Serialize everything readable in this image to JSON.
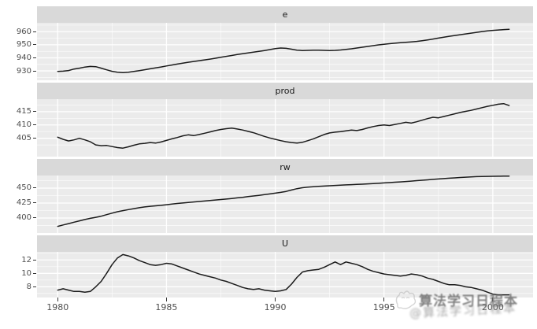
{
  "chart_data": {
    "type": "line",
    "title": "",
    "description": "Faceted quarterly time series panels, ggplot2 style",
    "facet_variable_labels": [
      "e",
      "prod",
      "rw",
      "U"
    ],
    "legend": "none",
    "grid": "major+minor",
    "x": {
      "start_year": 1980,
      "frequency": "quarterly",
      "step": 0.25,
      "n_points": 84,
      "xlim": [
        1979.05,
        2001.85
      ],
      "major_ticks": [
        1980,
        1985,
        1990,
        1995,
        2000
      ],
      "minor_ticks": [
        1982.5,
        1987.5,
        1992.5,
        1997.5
      ],
      "tick_labels": [
        "1980",
        "1985",
        "1990",
        "1995",
        "2000"
      ]
    },
    "facets": [
      {
        "label": "e",
        "ylim": [
          922.8,
          966.8
        ],
        "major_ticks": [
          930,
          940,
          950,
          960
        ],
        "minor_ticks": [
          925,
          935,
          945,
          955,
          965
        ],
        "tick_labels": [
          "930",
          "940",
          "950",
          "960"
        ],
        "values": [
          929.6,
          929.8,
          930.3,
          931.4,
          932.1,
          932.9,
          933.4,
          933.2,
          932.1,
          930.8,
          929.7,
          929.0,
          928.7,
          929.0,
          929.6,
          930.2,
          930.9,
          931.6,
          932.3,
          933.0,
          933.8,
          934.5,
          935.2,
          935.9,
          936.6,
          937.2,
          937.8,
          938.4,
          939.0,
          939.7,
          940.4,
          941.1,
          941.8,
          942.5,
          943.1,
          943.7,
          944.3,
          944.9,
          945.6,
          946.3,
          947.0,
          947.5,
          947.3,
          946.6,
          945.9,
          945.6,
          945.7,
          945.9,
          945.9,
          945.7,
          945.6,
          945.7,
          946.0,
          946.4,
          946.9,
          947.5,
          948.1,
          948.7,
          949.3,
          949.9,
          950.4,
          950.8,
          951.2,
          951.6,
          951.9,
          952.2,
          952.6,
          953.1,
          953.7,
          954.4,
          955.1,
          955.8,
          956.5,
          957.1,
          957.7,
          958.3,
          958.9,
          959.5,
          960.1,
          960.6,
          961.0,
          961.3,
          961.6,
          961.8
        ]
      },
      {
        "label": "prod",
        "ylim": [
          398.1,
          419.7
        ],
        "major_ticks": [
          405,
          410,
          415
        ],
        "minor_ticks": [
          402.5,
          407.5,
          412.5,
          417.5
        ],
        "tick_labels": [
          "405",
          "410",
          "415"
        ],
        "values": [
          405.4,
          404.6,
          404.0,
          404.4,
          405.0,
          404.4,
          403.7,
          402.5,
          402.2,
          402.3,
          401.9,
          401.5,
          401.3,
          401.8,
          402.4,
          402.9,
          403.1,
          403.4,
          403.2,
          403.6,
          404.2,
          404.8,
          405.3,
          405.9,
          406.3,
          406.0,
          406.4,
          406.9,
          407.4,
          407.9,
          408.3,
          408.6,
          408.8,
          408.5,
          408.1,
          407.6,
          407.1,
          406.4,
          405.7,
          405.1,
          404.6,
          404.1,
          403.7,
          403.4,
          403.2,
          403.5,
          404.1,
          404.8,
          405.6,
          406.4,
          407.0,
          407.3,
          407.5,
          407.8,
          408.1,
          407.9,
          408.3,
          408.9,
          409.4,
          409.8,
          410.0,
          409.8,
          410.2,
          410.6,
          411.0,
          410.7,
          411.2,
          411.8,
          412.4,
          412.9,
          412.7,
          413.2,
          413.7,
          414.2,
          414.7,
          415.1,
          415.5,
          416.0,
          416.5,
          417.0,
          417.4,
          417.8,
          418.0,
          417.3
        ]
      },
      {
        "label": "rw",
        "ylim": [
          375,
          471
        ],
        "major_ticks": [
          400,
          425,
          450
        ],
        "minor_ticks": [
          387.5,
          412.5,
          437.5,
          462.5
        ],
        "tick_labels": [
          "400",
          "425",
          "450"
        ],
        "values": [
          386.1,
          388.4,
          390.7,
          393.0,
          395.2,
          397.5,
          399.4,
          401.2,
          403.0,
          405.6,
          408.2,
          410.5,
          412.4,
          414.1,
          415.7,
          417.2,
          418.5,
          419.6,
          420.4,
          421.2,
          422.2,
          423.3,
          424.3,
          425.1,
          425.9,
          426.8,
          427.6,
          428.4,
          429.2,
          430.1,
          430.9,
          431.7,
          432.6,
          433.6,
          434.6,
          435.7,
          436.8,
          437.9,
          439.0,
          440.2,
          441.5,
          442.9,
          444.5,
          446.8,
          449.1,
          450.6,
          451.6,
          452.3,
          452.9,
          453.4,
          453.9,
          454.4,
          454.9,
          455.3,
          455.7,
          456.1,
          456.5,
          457.0,
          457.5,
          458.0,
          458.6,
          459.2,
          459.8,
          460.4,
          461.0,
          461.7,
          462.4,
          463.1,
          463.8,
          464.5,
          465.2,
          465.9,
          466.5,
          467.1,
          467.7,
          468.2,
          468.7,
          469.1,
          469.4,
          469.6,
          469.7,
          469.8,
          469.9,
          470.0
        ]
      },
      {
        "label": "U",
        "ylim": [
          6.4,
          13.2
        ],
        "major_ticks": [
          8,
          10,
          12
        ],
        "minor_ticks": [
          7,
          9,
          11,
          13
        ],
        "tick_labels": [
          "8",
          "10",
          "12"
        ],
        "values": [
          7.5,
          7.7,
          7.5,
          7.3,
          7.3,
          7.2,
          7.3,
          8.0,
          8.8,
          10.0,
          11.3,
          12.3,
          12.8,
          12.6,
          12.3,
          11.9,
          11.6,
          11.3,
          11.2,
          11.3,
          11.5,
          11.4,
          11.1,
          10.8,
          10.5,
          10.2,
          9.9,
          9.7,
          9.5,
          9.3,
          9.0,
          8.8,
          8.5,
          8.2,
          7.9,
          7.7,
          7.6,
          7.7,
          7.5,
          7.4,
          7.3,
          7.4,
          7.6,
          8.4,
          9.4,
          10.2,
          10.4,
          10.5,
          10.6,
          10.9,
          11.3,
          11.7,
          11.3,
          11.7,
          11.5,
          11.3,
          11.0,
          10.6,
          10.3,
          10.1,
          9.9,
          9.8,
          9.7,
          9.6,
          9.7,
          9.9,
          9.8,
          9.6,
          9.3,
          9.1,
          8.8,
          8.5,
          8.3,
          8.3,
          8.2,
          8.0,
          7.9,
          7.7,
          7.5,
          7.2,
          6.9,
          6.8,
          6.8,
          6.8
        ]
      }
    ],
    "colors": {
      "panel_bg": "#ebebeb",
      "strip_bg": "#d9d9d9",
      "grid": "#ffffff",
      "line": "#1b1b1b",
      "axis_text": "#4d4d4d",
      "strip_text": "#1a1a1a",
      "tick_mark": "#333333"
    }
  },
  "watermark": {
    "logo": "doodle-cat-icon",
    "primary_text": "算法学习日程本",
    "secondary_text_obscured": "@算法学习日程本"
  }
}
